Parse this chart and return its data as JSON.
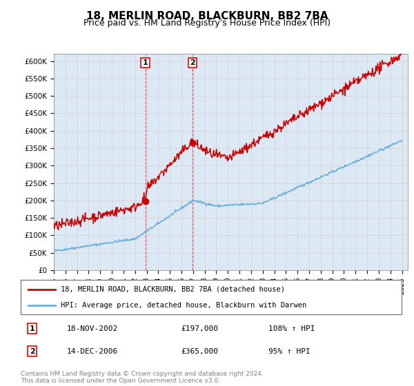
{
  "title": "18, MERLIN ROAD, BLACKBURN, BB2 7BA",
  "subtitle": "Price paid vs. HM Land Registry's House Price Index (HPI)",
  "ylim": [
    0,
    620000
  ],
  "yticks": [
    0,
    50000,
    100000,
    150000,
    200000,
    250000,
    300000,
    350000,
    400000,
    450000,
    500000,
    550000,
    600000
  ],
  "hpi_color": "#6baed6",
  "price_color": "#cc0000",
  "background_color": "#dce9f5",
  "sale1": {
    "date_num": 2002.88,
    "price": 197000,
    "label": "1",
    "date_str": "18-NOV-2002",
    "hpi_pct": "108% ↑ HPI"
  },
  "sale2": {
    "date_num": 2006.95,
    "price": 365000,
    "label": "2",
    "date_str": "14-DEC-2006",
    "hpi_pct": "95% ↑ HPI"
  },
  "legend_line1": "18, MERLIN ROAD, BLACKBURN, BB2 7BA (detached house)",
  "legend_line2": "HPI: Average price, detached house, Blackburn with Darwen",
  "table_row1": [
    "1",
    "18-NOV-2002",
    "£197,000",
    "108% ↑ HPI"
  ],
  "table_row2": [
    "2",
    "14-DEC-2006",
    "£365,000",
    "95% ↑ HPI"
  ],
  "footnote": "Contains HM Land Registry data © Crown copyright and database right 2024.\nThis data is licensed under the Open Government Licence v3.0.",
  "xmin": 1995.0,
  "xmax": 2025.5
}
